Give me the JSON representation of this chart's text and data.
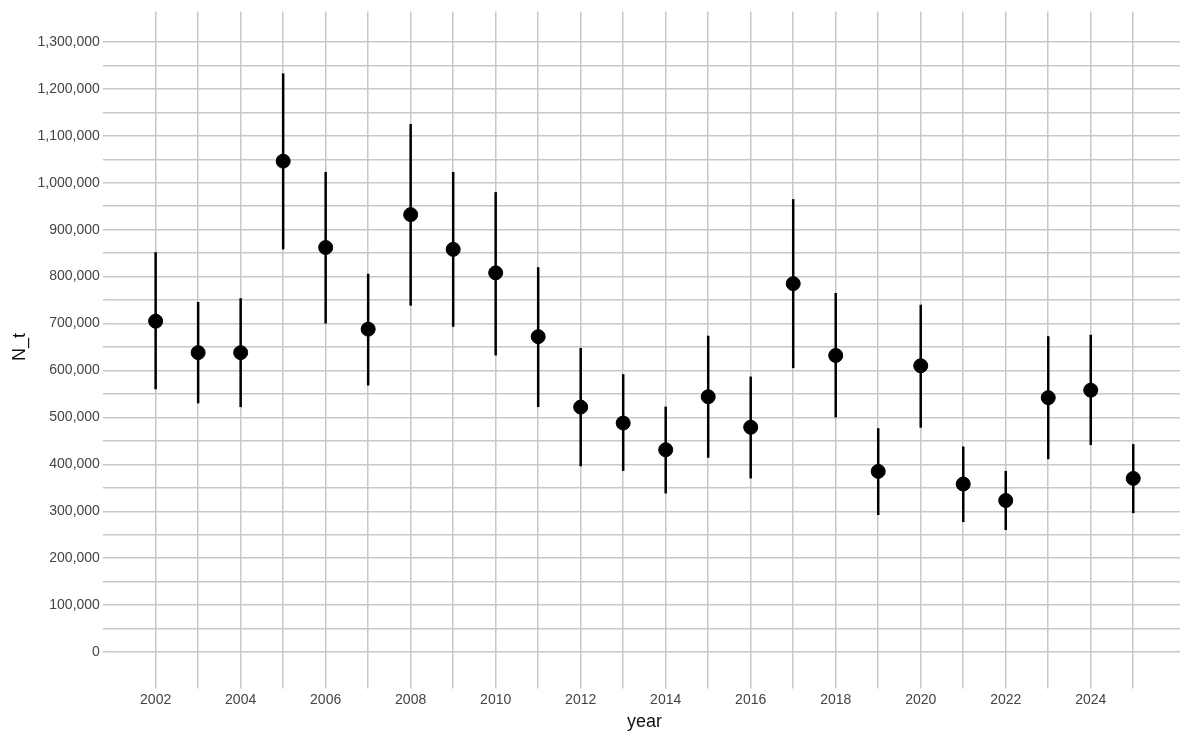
{
  "chart_data": {
    "type": "scatter",
    "xlabel": "year",
    "ylabel": "N_t",
    "x": [
      2002,
      2003,
      2004,
      2005,
      2006,
      2007,
      2008,
      2009,
      2010,
      2011,
      2012,
      2013,
      2014,
      2015,
      2016,
      2017,
      2018,
      2019,
      2020,
      2021,
      2022,
      2023,
      2024,
      2025
    ],
    "values": [
      705000,
      638000,
      638000,
      1046000,
      862000,
      688000,
      932000,
      858000,
      808000,
      672000,
      522000,
      488000,
      431000,
      544000,
      479000,
      785000,
      632000,
      385000,
      610000,
      358000,
      323000,
      542000,
      558000,
      370000
    ],
    "errors": [
      [
        560000,
        852000
      ],
      [
        530000,
        746000
      ],
      [
        522000,
        754000
      ],
      [
        858000,
        1233000
      ],
      [
        700000,
        1023000
      ],
      [
        568000,
        806000
      ],
      [
        738000,
        1125000
      ],
      [
        693000,
        1023000
      ],
      [
        632000,
        980000
      ],
      [
        522000,
        820000
      ],
      [
        396000,
        648000
      ],
      [
        386000,
        592000
      ],
      [
        338000,
        523000
      ],
      [
        414000,
        674000
      ],
      [
        370000,
        587000
      ],
      [
        605000,
        965000
      ],
      [
        500000,
        765000
      ],
      [
        292000,
        477000
      ],
      [
        478000,
        740000
      ],
      [
        277000,
        438000
      ],
      [
        260000,
        386000
      ],
      [
        411000,
        673000
      ],
      [
        441000,
        676000
      ],
      [
        296000,
        443000
      ]
    ],
    "color": "#000000",
    "marker": "circle",
    "grid": true,
    "xlim": [
      2000.9,
      2026.1
    ],
    "xticks": [
      2002,
      {
        "value": 2003,
        "label": null
      },
      2004,
      {
        "value": 2005,
        "label": null
      },
      2006,
      {
        "value": 2007,
        "label": null
      },
      2008,
      {
        "value": 2009,
        "label": null
      },
      2010,
      {
        "value": 2011,
        "label": null
      },
      2012,
      {
        "value": 2013,
        "label": null
      },
      2014,
      {
        "value": 2015,
        "label": null
      },
      2016,
      {
        "value": 2017,
        "label": null
      },
      2018,
      {
        "value": 2019,
        "label": null
      },
      2020,
      {
        "value": 2021,
        "label": null
      },
      2022,
      {
        "value": 2023,
        "label": null
      },
      2024,
      {
        "value": 2025,
        "label": null
      }
    ],
    "ylim": [
      -65000,
      1365000
    ],
    "yticks": [
      {
        "value": 0,
        "label": "0"
      },
      {
        "value": 50000,
        "label": null
      },
      {
        "value": 100000,
        "label": "100,000"
      },
      {
        "value": 150000,
        "label": null
      },
      {
        "value": 200000,
        "label": "200,000"
      },
      {
        "value": 250000,
        "label": null
      },
      {
        "value": 300000,
        "label": "300,000"
      },
      {
        "value": 350000,
        "label": null
      },
      {
        "value": 400000,
        "label": "400,000"
      },
      {
        "value": 450000,
        "label": null
      },
      {
        "value": 500000,
        "label": "500,000"
      },
      {
        "value": 550000,
        "label": null
      },
      {
        "value": 600000,
        "label": "600,000"
      },
      {
        "value": 650000,
        "label": null
      },
      {
        "value": 700000,
        "label": "700,000"
      },
      {
        "value": 750000,
        "label": null
      },
      {
        "value": 800000,
        "label": "800,000"
      },
      {
        "value": 850000,
        "label": null
      },
      {
        "value": 900000,
        "label": "900,000"
      },
      {
        "value": 950000,
        "label": null
      },
      {
        "value": 1000000,
        "label": "1,000,000"
      },
      {
        "value": 1050000,
        "label": null
      },
      {
        "value": 1100000,
        "label": "1,100,000"
      },
      {
        "value": 1150000,
        "label": null
      },
      {
        "value": 1200000,
        "label": "1,200,000"
      },
      {
        "value": 1250000,
        "label": null
      },
      {
        "value": 1300000,
        "label": "1,300,000"
      }
    ]
  }
}
